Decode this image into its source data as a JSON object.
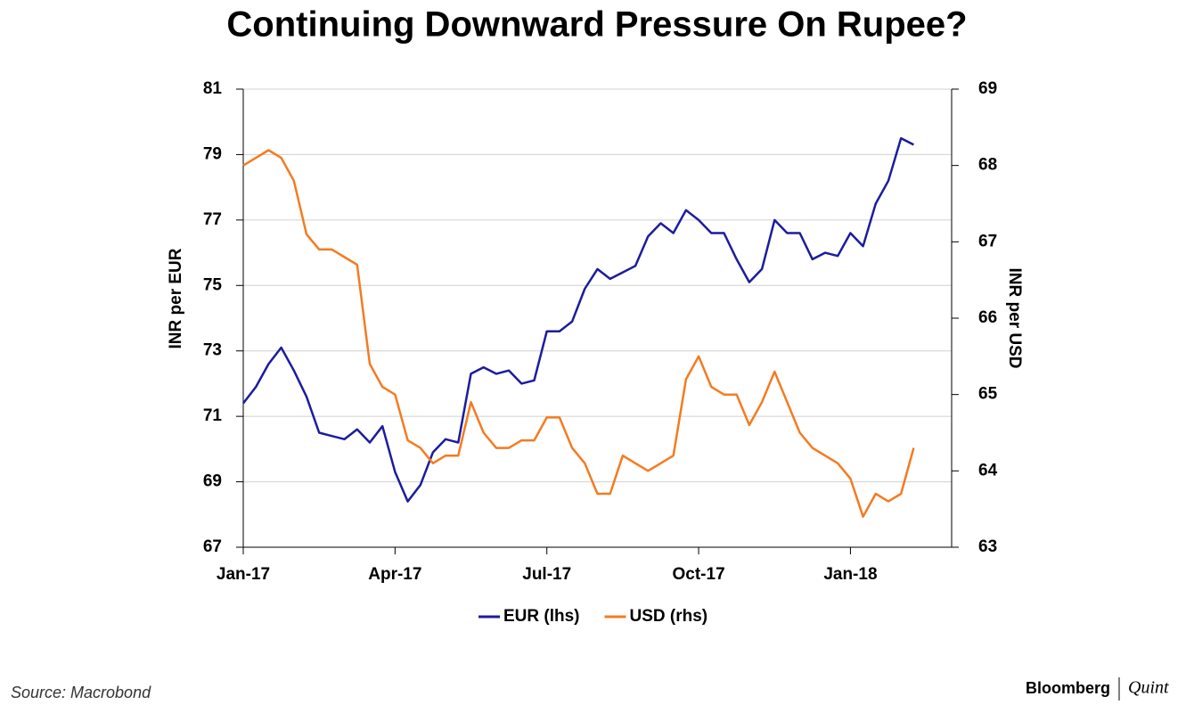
{
  "chart_data": {
    "type": "line",
    "title": "Continuing Downward Pressure On Rupee?",
    "x": [
      0,
      0.25,
      0.5,
      0.75,
      1,
      1.25,
      1.5,
      1.75,
      2,
      2.25,
      2.5,
      2.75,
      3,
      3.25,
      3.5,
      3.75,
      4,
      4.25,
      4.5,
      4.75,
      5,
      5.25,
      5.5,
      5.75,
      6,
      6.25,
      6.5,
      6.75,
      7,
      7.25,
      7.5,
      7.75,
      8,
      8.25,
      8.5,
      8.75,
      9,
      9.25,
      9.5,
      9.75,
      10,
      10.25,
      10.5,
      10.75,
      11,
      11.25,
      11.5,
      11.75,
      12,
      12.25,
      12.5,
      12.75,
      13,
      13.25
    ],
    "xlim": [
      0,
      14
    ],
    "xticks": [
      {
        "value": 0,
        "label": "Jan-17"
      },
      {
        "value": 3,
        "label": "Apr-17"
      },
      {
        "value": 6,
        "label": "Jul-17"
      },
      {
        "value": 9,
        "label": "Oct-17"
      },
      {
        "value": 12,
        "label": "Jan-18"
      }
    ],
    "ylabel": "INR per EUR",
    "ylim": [
      67,
      81
    ],
    "yticks": [
      67,
      69,
      71,
      73,
      75,
      77,
      79,
      81
    ],
    "y2label": "INR per USD",
    "y2lim": [
      63,
      69
    ],
    "y2ticks": [
      63,
      64,
      65,
      66,
      67,
      68,
      69
    ],
    "grid": true,
    "series": [
      {
        "name": "EUR (lhs)",
        "color": "#1c1c9e",
        "values": [
          71.4,
          71.9,
          72.6,
          73.1,
          72.4,
          71.6,
          70.5,
          70.4,
          70.3,
          70.6,
          70.2,
          70.7,
          69.3,
          68.4,
          68.9,
          69.9,
          70.3,
          70.2,
          72.3,
          72.5,
          72.3,
          72.4,
          72.0,
          72.1,
          73.6,
          73.6,
          73.9,
          74.9,
          75.5,
          75.2,
          75.4,
          75.6,
          76.5,
          76.9,
          76.6,
          77.3,
          77.0,
          76.6,
          76.6,
          75.8,
          75.1,
          75.5,
          77.0,
          76.6,
          76.6,
          75.8,
          76.0,
          75.9,
          76.6,
          76.2,
          77.5,
          78.2,
          79.5,
          79.3
        ]
      },
      {
        "name": "USD (rhs)",
        "color": "#f47b20",
        "axis": "y2",
        "values": [
          68.0,
          68.1,
          68.2,
          68.1,
          67.8,
          67.1,
          66.9,
          66.9,
          66.8,
          66.7,
          65.4,
          65.1,
          65.0,
          64.4,
          64.3,
          64.1,
          64.2,
          64.2,
          64.9,
          64.5,
          64.3,
          64.3,
          64.4,
          64.4,
          64.7,
          64.7,
          64.3,
          64.1,
          63.7,
          63.7,
          64.2,
          64.1,
          64.0,
          64.1,
          64.2,
          65.2,
          65.5,
          65.1,
          65.0,
          65.0,
          64.6,
          64.9,
          65.3,
          64.9,
          64.5,
          64.3,
          64.2,
          64.1,
          63.9,
          63.4,
          63.7,
          63.6,
          63.7,
          64.3
        ]
      }
    ],
    "source": "Source: Macrobond"
  },
  "branding": {
    "name": "Bloomberg",
    "suffix": "Quint"
  }
}
